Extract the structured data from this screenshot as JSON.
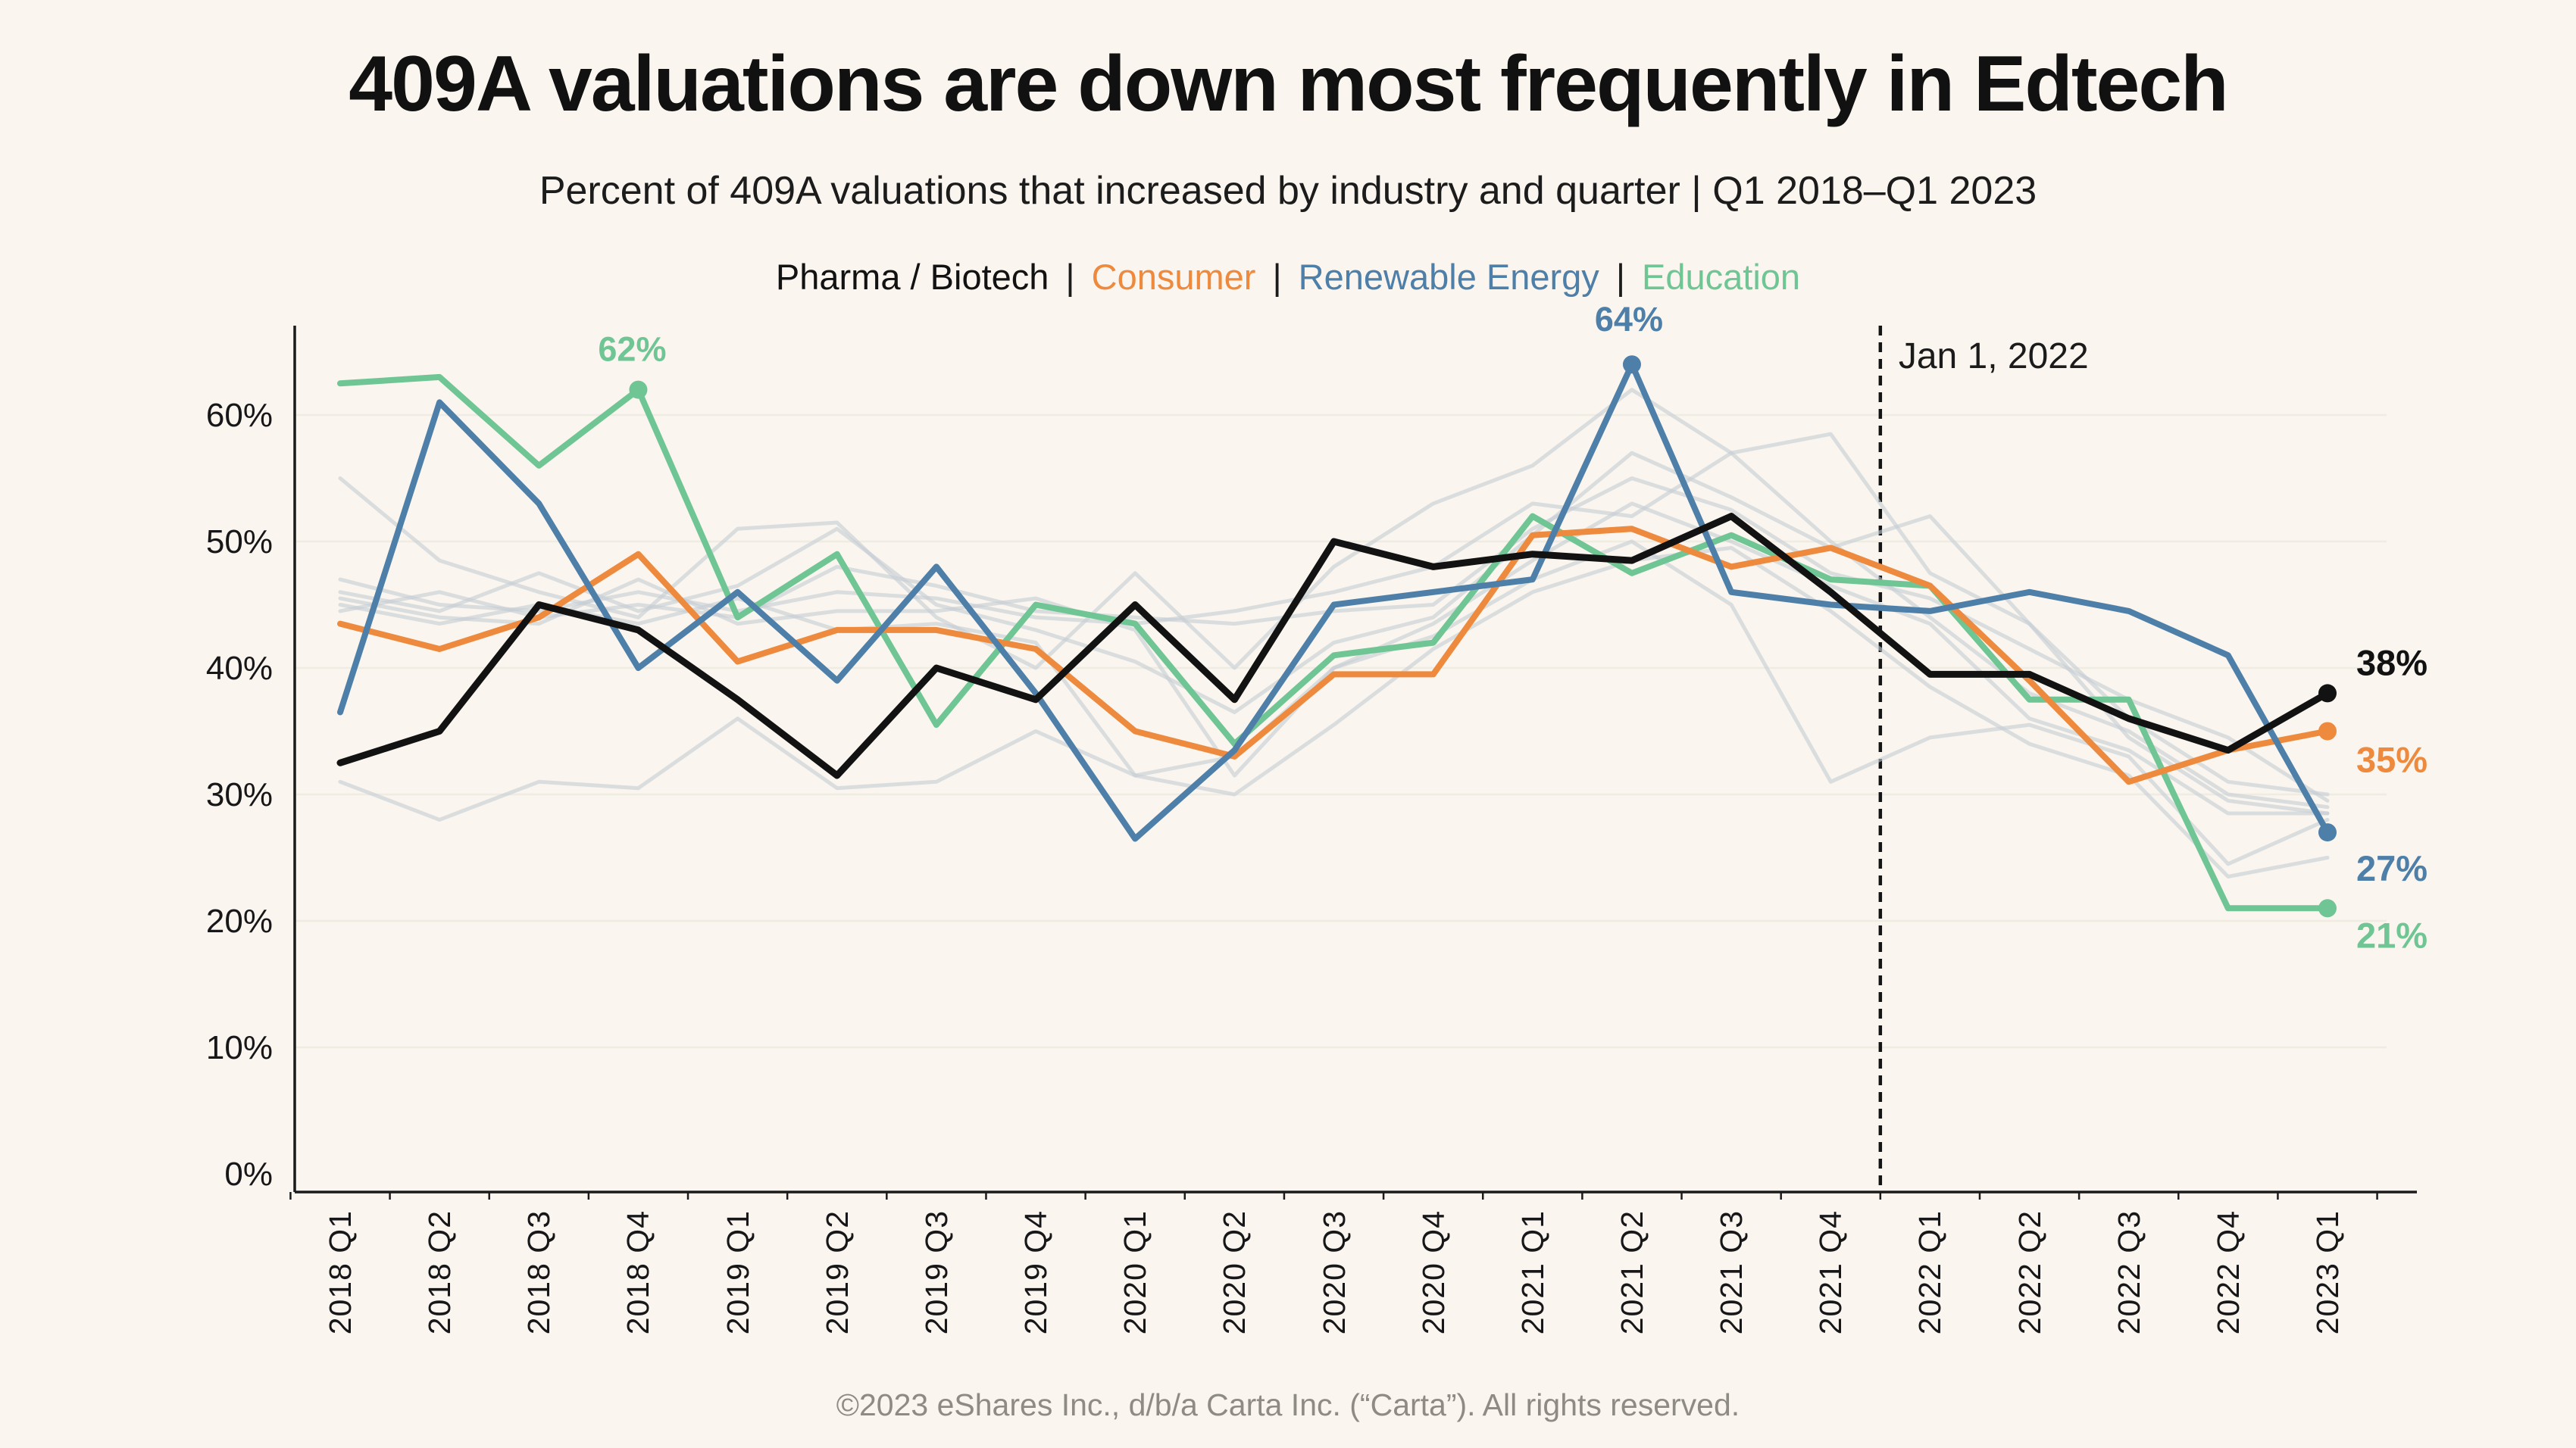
{
  "page": {
    "title": "409A valuations are down most frequently in Edtech",
    "subtitle": "Percent of 409A valuations that increased by industry and quarter | Q1 2018–Q1 2023",
    "footer": "©2023 eShares Inc., d/b/a Carta Inc. (“Carta”). All rights reserved."
  },
  "legend": {
    "separator": "|",
    "items": [
      {
        "label": "Pharma / Biotech",
        "color": "#121212"
      },
      {
        "label": "Consumer",
        "color": "#ed8a3e"
      },
      {
        "label": "Renewable Energy",
        "color": "#4d7fa9"
      },
      {
        "label": "Education",
        "color": "#6fc594"
      }
    ]
  },
  "chart_data": {
    "type": "line",
    "title": "409A valuations are down most frequently in Edtech",
    "xlabel": "",
    "ylabel": "",
    "ylim": [
      0,
      67
    ],
    "grid": true,
    "categories": [
      "2018 Q1",
      "2018 Q2",
      "2018 Q3",
      "2018 Q4",
      "2019 Q1",
      "2019 Q2",
      "2019 Q3",
      "2019 Q4",
      "2020 Q1",
      "2020 Q2",
      "2020 Q3",
      "2020 Q4",
      "2021 Q1",
      "2021 Q2",
      "2021 Q3",
      "2021 Q4",
      "2022 Q1",
      "2022 Q2",
      "2022 Q3",
      "2022 Q4",
      "2023 Q1"
    ],
    "y_axis": {
      "tick_labels": [
        "0%",
        "10%",
        "20%",
        "30%",
        "40%",
        "50%",
        "60%"
      ]
    },
    "vline": {
      "label": "Jan 1, 2022",
      "between_categories": [
        "2021 Q4",
        "2022 Q1"
      ]
    },
    "series": [
      {
        "name": "other-industry-1",
        "role": "background",
        "color": "#c5cdd4",
        "opacity": 0.6,
        "width": 5,
        "values": [
          55,
          48.5,
          46,
          44,
          51,
          51.5,
          44,
          40,
          47.5,
          40,
          48,
          53,
          56,
          62,
          57,
          50,
          44,
          38,
          35,
          30,
          29
        ]
      },
      {
        "name": "other-industry-2",
        "role": "background",
        "color": "#c5cdd4",
        "opacity": 0.6,
        "width": 5,
        "values": [
          47,
          45,
          44.5,
          46,
          44.5,
          46,
          45.5,
          44,
          43.5,
          44.5,
          46,
          48,
          53,
          52,
          57,
          58.5,
          47.5,
          43.5,
          36,
          31,
          30
        ]
      },
      {
        "name": "other-industry-3",
        "role": "background",
        "color": "#c5cdd4",
        "opacity": 0.6,
        "width": 5,
        "values": [
          46,
          44.5,
          47.5,
          44.5,
          46.5,
          51,
          45,
          43,
          40.5,
          36.5,
          42,
          44,
          50.5,
          57,
          53.5,
          49.5,
          52,
          43.5,
          34.5,
          29.5,
          28.5
        ]
      },
      {
        "name": "other-industry-4",
        "role": "background",
        "color": "#c5cdd4",
        "opacity": 0.6,
        "width": 5,
        "values": [
          45.5,
          44,
          43.5,
          47,
          43.5,
          44.5,
          44.5,
          45.5,
          43,
          31.5,
          40,
          43.5,
          48.5,
          53,
          50,
          46.5,
          43.5,
          36,
          33.5,
          28.5,
          28.5
        ]
      },
      {
        "name": "other-industry-5",
        "role": "background",
        "color": "#c5cdd4",
        "opacity": 0.6,
        "width": 5,
        "values": [
          45,
          43.5,
          45,
          43.5,
          45.5,
          43,
          43.5,
          42,
          31.5,
          30,
          35.5,
          41.5,
          46,
          48.5,
          49.5,
          44.5,
          38.5,
          34,
          31.5,
          23.5,
          25
        ]
      },
      {
        "name": "other-industry-6",
        "role": "background",
        "color": "#c5cdd4",
        "opacity": 0.6,
        "width": 5,
        "values": [
          44.5,
          46,
          44,
          45,
          44,
          48,
          46.5,
          44.5,
          44,
          43.5,
          44.5,
          45,
          51,
          55,
          52.5,
          47.5,
          45.5,
          41.5,
          37.5,
          34.5,
          29.5
        ]
      },
      {
        "name": "other-industry-7",
        "role": "background",
        "color": "#c5cdd4",
        "opacity": 0.6,
        "width": 5,
        "values": [
          31,
          28,
          31,
          30.5,
          36,
          30.5,
          31,
          35,
          31.5,
          33,
          40,
          42.5,
          47,
          50,
          45,
          31,
          34.5,
          35.5,
          33,
          24.5,
          28
        ]
      },
      {
        "name": "Education",
        "role": "highlight",
        "color": "#6fc594",
        "opacity": 1,
        "width": 8,
        "values": [
          62.5,
          63,
          56,
          62,
          44,
          49,
          35.5,
          45,
          43.5,
          34,
          41,
          42,
          52,
          47.5,
          50.5,
          47,
          46.5,
          37.5,
          37.5,
          21,
          21
        ],
        "dots": [
          3,
          20
        ],
        "point_labels": [
          {
            "index": 3,
            "text": "62%",
            "dx": -8,
            "dy": -38
          }
        ],
        "end_label": {
          "text": "21%",
          "dy": 52
        }
      },
      {
        "name": "Consumer",
        "role": "highlight",
        "color": "#ed8a3e",
        "opacity": 1,
        "width": 8,
        "values": [
          43.5,
          41.5,
          44,
          49,
          40.5,
          43,
          43,
          41.5,
          35,
          33,
          39.5,
          39.5,
          50.5,
          51,
          48,
          49.5,
          46.5,
          39,
          31,
          33.5,
          35
        ],
        "dots": [
          20
        ],
        "point_labels": [],
        "end_label": {
          "text": "35%",
          "dy": 54
        }
      },
      {
        "name": "Renewable Energy",
        "role": "highlight",
        "color": "#4d7fa9",
        "opacity": 1,
        "width": 8,
        "values": [
          36.5,
          61,
          53,
          40,
          46,
          39,
          48,
          38,
          26.5,
          33.5,
          45,
          46,
          47,
          64,
          46,
          45,
          44.5,
          46,
          44.5,
          41,
          27
        ],
        "dots": [
          13,
          20
        ],
        "point_labels": [
          {
            "index": 13,
            "text": "64%",
            "dx": -4,
            "dy": -44
          }
        ],
        "end_label": {
          "text": "27%",
          "dy": 64
        }
      },
      {
        "name": "Pharma / Biotech",
        "role": "highlight",
        "color": "#121212",
        "opacity": 1,
        "width": 9,
        "values": [
          32.5,
          35,
          45,
          43,
          37.5,
          31.5,
          40,
          37.5,
          45,
          37.5,
          50,
          48,
          49,
          48.5,
          52,
          46,
          39.5,
          39.5,
          36,
          33.5,
          38
        ],
        "dots": [
          20
        ],
        "point_labels": [],
        "end_label": {
          "text": "38%",
          "dy": -24
        }
      }
    ]
  }
}
